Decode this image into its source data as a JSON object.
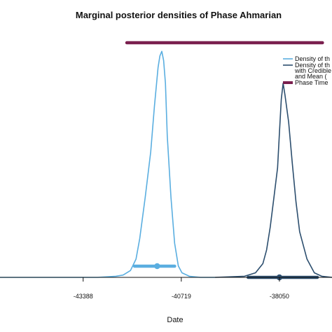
{
  "chart_data": {
    "type": "line",
    "title": "Marginal posterior densities of Phase Ahmarian",
    "xlabel": "Date",
    "ylabel": "",
    "xlim": [
      -45650,
      -36620
    ],
    "ylim": [
      0,
      1.0
    ],
    "x_ticks": [
      -43388,
      -40719,
      -38050
    ],
    "x_tick_labels": [
      "-43388",
      "-40719",
      "-38050"
    ],
    "grid": false,
    "legend_position": "top-right",
    "legend": [
      {
        "label": "Density of th",
        "style": "line",
        "color": "#5aaee0"
      },
      {
        "label": "Density of th",
        "style": "line",
        "color": "#2c4e6e"
      },
      {
        "label": "with Credible",
        "style": "text",
        "color": "#111111"
      },
      {
        "label": "and Mean (",
        "style": "text",
        "color": "#111111"
      },
      {
        "label": "Phase Time",
        "style": "thick",
        "color": "#7a1f4e"
      }
    ],
    "series": [
      {
        "color": "#5aaee0",
        "x": [
          -45650,
          -43000,
          -42500,
          -42300,
          -42100,
          -41950,
          -41850,
          -41700,
          -41550,
          -41450,
          -41350,
          -41300,
          -41250,
          -41200,
          -41150,
          -41100,
          -41000,
          -40900,
          -40800,
          -40700,
          -40500,
          -40200,
          -39800
        ],
        "y": [
          0.0,
          0.0,
          0.005,
          0.01,
          0.03,
          0.08,
          0.17,
          0.35,
          0.55,
          0.75,
          0.92,
          0.97,
          0.99,
          0.95,
          0.85,
          0.62,
          0.35,
          0.15,
          0.05,
          0.02,
          0.005,
          0.0,
          0.0
        ],
        "interval": [
          -41990,
          -40900
        ],
        "mean": -41375
      },
      {
        "color": "#2c4e6e",
        "x": [
          -39800,
          -39000,
          -38700,
          -38500,
          -38400,
          -38300,
          -38200,
          -38100,
          -38050,
          -38000,
          -37950,
          -37900,
          -37800,
          -37700,
          -37600,
          -37500,
          -37300,
          -37100,
          -36900,
          -36620
        ],
        "y": [
          0.0,
          0.005,
          0.02,
          0.06,
          0.12,
          0.22,
          0.35,
          0.48,
          0.63,
          0.78,
          0.85,
          0.8,
          0.68,
          0.5,
          0.33,
          0.2,
          0.08,
          0.02,
          0.005,
          0.0
        ],
        "interval": [
          -38900,
          -37020
        ],
        "mean": -38050
      }
    ],
    "phase_bar": {
      "color": "#7a1f4e",
      "from": -42200,
      "to": -36880
    }
  }
}
